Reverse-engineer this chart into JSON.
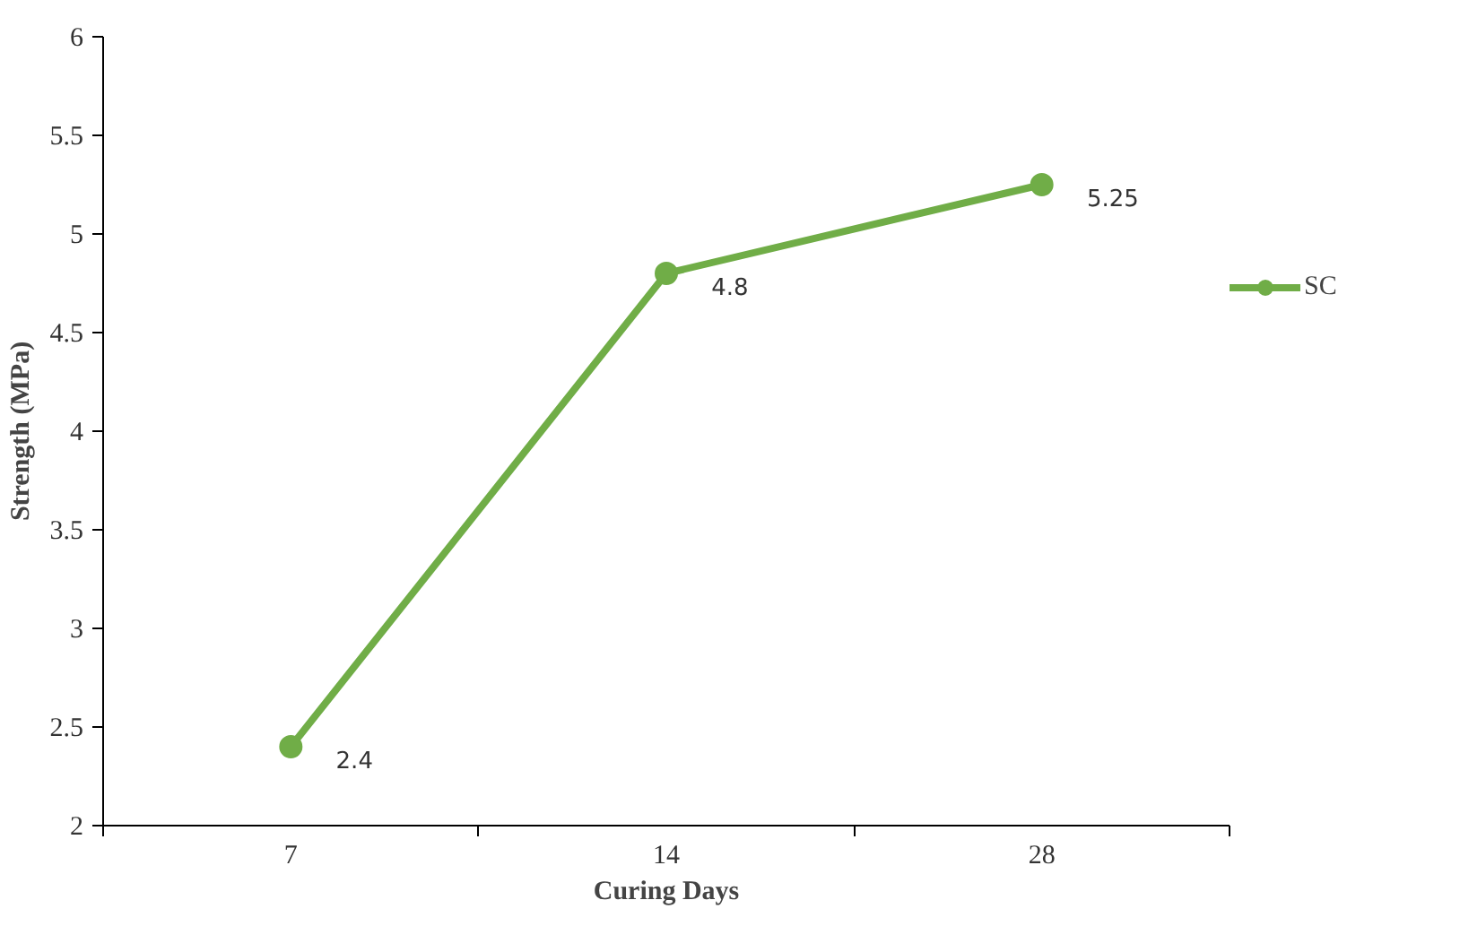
{
  "chart_data": {
    "type": "line",
    "xlabel": "Curing Days",
    "ylabel": "Strength (MPa)",
    "categories": [
      "7",
      "14",
      "28"
    ],
    "series": [
      {
        "name": "SC",
        "color": "#70ad47",
        "values": [
          2.4,
          4.8,
          5.25
        ]
      }
    ],
    "ylim": [
      2,
      6
    ],
    "yticks": [
      2,
      2.5,
      3,
      3.5,
      4,
      4.5,
      5,
      5.5,
      6
    ],
    "grid": false,
    "legend": "right",
    "marker": "circle",
    "line_style": "solid",
    "data_labels": true
  }
}
